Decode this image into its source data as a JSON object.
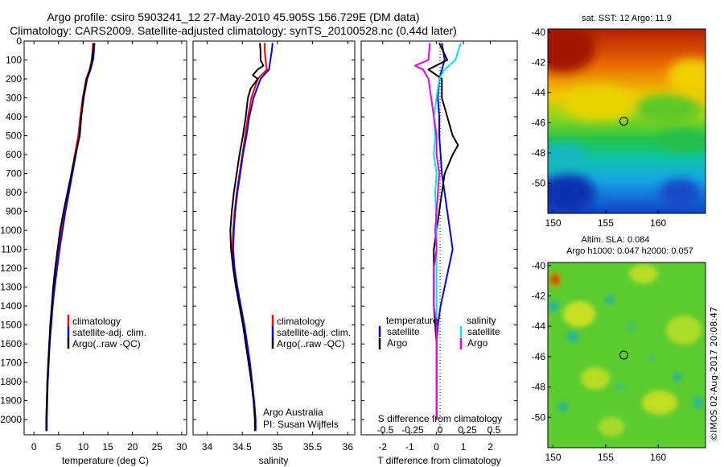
{
  "title_line1": "Argo profile: csiro 5903241_12 27-May-2010 45.905S 156.729E (DM data)",
  "title_line2": "Climatology: CARS2009. Satellite-adjusted climatology: synTS_20100528.nc (0.44d later)",
  "credit": "©IMOS 02-Aug-2017 20:08:47",
  "colors": {
    "climatology": "#ff0000",
    "satellite": "#0000ff",
    "argo": "#000000",
    "sal_satellite": "#00e5e5",
    "sal_argo": "#e600e6"
  },
  "chart_data": [
    {
      "type": "line",
      "name": "temperature_profile",
      "xlabel": "temperature (deg C)",
      "ylabel": "",
      "xlim": [
        -2,
        31
      ],
      "ylim": [
        2080,
        0
      ],
      "y_reversed": true,
      "xticks": [
        0,
        5,
        10,
        15,
        20,
        25,
        30
      ],
      "yticks": [
        0,
        100,
        200,
        300,
        400,
        500,
        600,
        700,
        800,
        900,
        1000,
        1100,
        1200,
        1300,
        1400,
        1500,
        1600,
        1700,
        1800,
        1900,
        2000
      ],
      "legend": [
        "climatology",
        "satellite-adj. clim.",
        "Argo(..raw -QC)"
      ],
      "series": [
        {
          "name": "climatology",
          "color": "#ff0000",
          "y": [
            10,
            50,
            100,
            150,
            200,
            300,
            400,
            500,
            600,
            700,
            800,
            900,
            1000,
            1100,
            1200,
            1300,
            1400,
            1500,
            1600,
            1700,
            1800,
            1900,
            2000,
            2060
          ],
          "x": [
            12.0,
            11.9,
            11.7,
            11.3,
            10.6,
            9.9,
            9.4,
            9.0,
            8.3,
            7.6,
            6.9,
            6.2,
            5.6,
            5.0,
            4.5,
            4.0,
            3.7,
            3.4,
            3.1,
            2.9,
            2.7,
            2.6,
            2.5,
            2.5
          ]
        },
        {
          "name": "satellite-adj. clim.",
          "color": "#0000ff",
          "y": [
            10,
            50,
            100,
            150,
            200,
            300,
            400,
            500,
            600,
            700,
            800,
            900,
            1000,
            1100,
            1200,
            1300,
            1400,
            1500,
            1600,
            1700,
            1800,
            1900,
            2000,
            2060
          ],
          "x": [
            12.3,
            12.2,
            12.0,
            11.5,
            10.8,
            10.1,
            9.6,
            9.2,
            8.5,
            7.8,
            7.1,
            6.4,
            5.8,
            5.2,
            4.7,
            4.2,
            3.8,
            3.5,
            3.2,
            3.0,
            2.8,
            2.7,
            2.6,
            2.6
          ]
        },
        {
          "name": "Argo(..raw -QC)",
          "color": "#000000",
          "y": [
            10,
            50,
            100,
            150,
            200,
            300,
            400,
            500,
            600,
            700,
            800,
            900,
            1000,
            1100,
            1200,
            1300,
            1400,
            1500,
            1600,
            1700,
            1800,
            1900,
            2000,
            2060
          ],
          "x": [
            12.1,
            12.0,
            11.8,
            11.4,
            10.7,
            10.0,
            9.6,
            9.3,
            8.4,
            7.6,
            6.8,
            6.0,
            5.3,
            4.8,
            4.3,
            3.9,
            3.6,
            3.3,
            3.1,
            2.9,
            2.7,
            2.6,
            2.5,
            2.5
          ]
        }
      ]
    },
    {
      "type": "line",
      "name": "salinity_profile",
      "xlabel": "salinity",
      "ylabel": "",
      "xlim": [
        33.8,
        36.1
      ],
      "ylim": [
        2080,
        0
      ],
      "y_reversed": true,
      "xticks": [
        34,
        34.5,
        35,
        35.5,
        36
      ],
      "legend": [
        "climatology",
        "satellite-adj. clim.",
        "Argo(..raw -QC)"
      ],
      "annotation": [
        "Argo Australia",
        "PI: Susan Wijffels"
      ],
      "series": [
        {
          "name": "climatology",
          "color": "#ff0000",
          "y": [
            10,
            50,
            100,
            150,
            200,
            300,
            400,
            500,
            600,
            700,
            800,
            900,
            1000,
            1100,
            1200,
            1300,
            1400,
            1500,
            1600,
            1700,
            1800,
            1900,
            2000,
            2060
          ],
          "x": [
            34.82,
            34.82,
            34.83,
            34.85,
            34.72,
            34.63,
            34.58,
            34.54,
            34.5,
            34.46,
            34.42,
            34.39,
            34.37,
            34.36,
            34.38,
            34.42,
            34.47,
            34.52,
            34.56,
            34.6,
            34.63,
            34.66,
            34.68,
            34.68
          ]
        },
        {
          "name": "satellite-adj. clim.",
          "color": "#0000ff",
          "y": [
            10,
            50,
            100,
            150,
            200,
            300,
            400,
            500,
            600,
            700,
            800,
            900,
            1000,
            1100,
            1200,
            1300,
            1400,
            1500,
            1600,
            1700,
            1800,
            1900,
            2000,
            2060
          ],
          "x": [
            34.93,
            34.92,
            34.9,
            34.88,
            34.76,
            34.66,
            34.6,
            34.56,
            34.51,
            34.47,
            34.43,
            34.4,
            34.38,
            34.37,
            34.39,
            34.43,
            34.48,
            34.53,
            34.57,
            34.61,
            34.64,
            34.67,
            34.69,
            34.69
          ]
        },
        {
          "name": "Argo(..raw -QC)",
          "color": "#000000",
          "y": [
            10,
            50,
            100,
            130,
            150,
            180,
            200,
            250,
            300,
            400,
            500,
            600,
            700,
            800,
            900,
            1000,
            1100,
            1200,
            1300,
            1400,
            1500,
            1600,
            1700,
            1800,
            1900,
            2000,
            2060
          ],
          "x": [
            34.75,
            34.76,
            34.76,
            34.8,
            34.72,
            34.65,
            34.72,
            34.62,
            34.58,
            34.55,
            34.51,
            34.46,
            34.42,
            34.38,
            34.35,
            34.33,
            34.34,
            34.37,
            34.41,
            34.46,
            34.51,
            34.55,
            34.59,
            34.63,
            34.66,
            34.68,
            34.68
          ]
        }
      ]
    },
    {
      "type": "line",
      "name": "difference_profile",
      "xlabel": "T difference from climatology",
      "top_xlabel": "S difference from climatology",
      "xlim": [
        -2.8,
        3.0
      ],
      "ylim": [
        2080,
        0
      ],
      "y_reversed": true,
      "xticks": [
        -2,
        -1,
        0,
        1,
        2
      ],
      "top_xticks": [
        "-0.5",
        "-0.25",
        "0",
        "0.25",
        "0.5"
      ],
      "legend_groups": [
        {
          "heading": "temperature",
          "items": [
            "satellite",
            "Argo"
          ]
        },
        {
          "heading": "salinity",
          "items": [
            "satellite",
            "Argo"
          ]
        }
      ],
      "series": [
        {
          "name": "temperature satellite",
          "color": "#0000ff",
          "y": [
            10,
            100,
            200,
            300,
            400,
            500,
            600,
            700,
            800,
            900,
            1000,
            1100,
            1200,
            1300,
            1400,
            1500,
            1600,
            1700,
            1800,
            1900,
            2000
          ],
          "x": [
            0.2,
            0.3,
            0.1,
            0.05,
            0.1,
            0.1,
            0.15,
            0.2,
            0.3,
            0.4,
            0.5,
            0.6,
            0.45,
            0.3,
            0.15,
            0.05,
            0.0,
            0.0,
            0.0,
            0.0,
            0.0
          ]
        },
        {
          "name": "temperature Argo",
          "color": "#000000",
          "y": [
            10,
            100,
            150,
            200,
            300,
            400,
            500,
            550,
            600,
            700,
            800,
            900,
            1000,
            1100,
            1200,
            1300,
            1400,
            1500,
            1600,
            1700,
            1800,
            1900,
            2000
          ],
          "x": [
            0.1,
            0.4,
            -0.3,
            0.2,
            0.2,
            0.4,
            0.6,
            0.8,
            0.6,
            0.3,
            0.2,
            0.1,
            0.0,
            -0.1,
            -0.1,
            -0.1,
            -0.1,
            -0.05,
            0.0,
            0.0,
            0.0,
            0.0,
            0.0
          ]
        },
        {
          "name": "salinity satellite",
          "color": "#00e5e5",
          "y": [
            10,
            100,
            150,
            200,
            300,
            400,
            500,
            600,
            700,
            800,
            1000,
            1200,
            1400,
            1600,
            1800,
            2000
          ],
          "x": [
            0.9,
            0.7,
            0.3,
            0.1,
            0.0,
            -0.1,
            -0.05,
            -0.1,
            0.0,
            -0.05,
            0.0,
            0.0,
            0.0,
            0.0,
            0.0,
            0.0
          ]
        },
        {
          "name": "salinity Argo",
          "color": "#e600e6",
          "y": [
            10,
            100,
            130,
            150,
            200,
            300,
            400,
            500,
            600,
            700,
            800,
            900,
            1000,
            1100,
            1200,
            1300,
            1400,
            1500,
            1600,
            1700,
            1800,
            1900,
            2000
          ],
          "x": [
            -0.25,
            -0.3,
            -0.8,
            -0.5,
            -0.3,
            -0.2,
            -0.1,
            0.0,
            0.0,
            0.1,
            0.05,
            0.0,
            -0.05,
            0.0,
            -0.1,
            -0.1,
            -0.1,
            0.0,
            0.0,
            0.0,
            0.0,
            0.0,
            0.0
          ]
        }
      ]
    },
    {
      "type": "heatmap",
      "name": "sst_map",
      "title": "sat. SST: 12  Argo: 11.9",
      "xlim": [
        149.5,
        164.5
      ],
      "ylim": [
        -52,
        -39.8
      ],
      "xticks": [
        150,
        155,
        160
      ],
      "yticks": [
        -40,
        -42,
        -44,
        -46,
        -48,
        -50
      ],
      "marker": {
        "lon": 156.73,
        "lat": -45.9
      }
    },
    {
      "type": "heatmap",
      "name": "sla_map",
      "title_lines": [
        "Altim. SLA: 0.084",
        "Argo h1000: 0.047 h2000: 0.057"
      ],
      "xlim": [
        149.5,
        164.5
      ],
      "ylim": [
        -52,
        -39.8
      ],
      "xticks": [
        150,
        155,
        160
      ],
      "yticks": [
        -40,
        -42,
        -44,
        -46,
        -48,
        -50
      ],
      "marker": {
        "lon": 156.73,
        "lat": -45.9
      }
    }
  ]
}
